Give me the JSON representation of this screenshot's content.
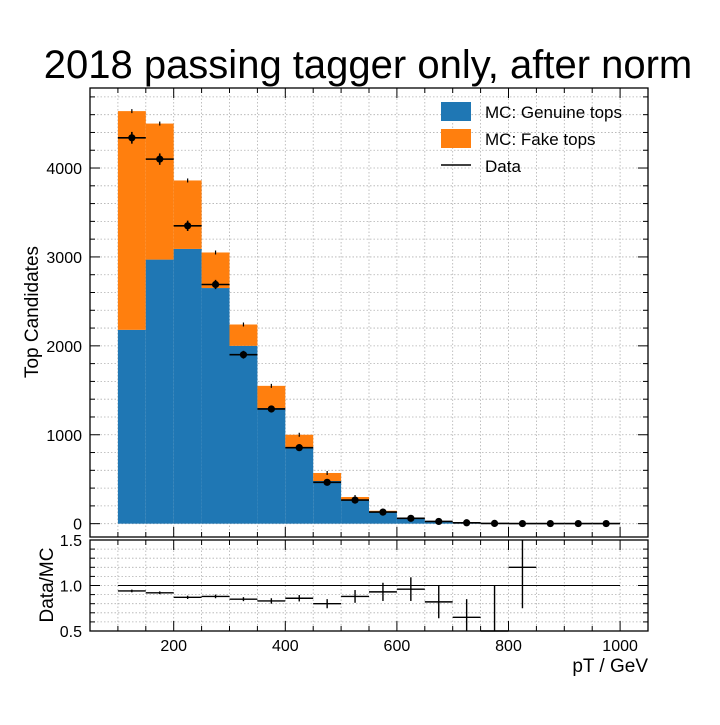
{
  "chart_data": [
    {
      "type": "bar",
      "stacked": true,
      "title": "2018 passing tagger only, after norm",
      "ylabel": "Top Candidates",
      "xlim": [
        50,
        1050
      ],
      "ylim": [
        -150,
        4900
      ],
      "bin_edges": [
        100,
        150,
        200,
        250,
        300,
        350,
        400,
        450,
        500,
        550,
        600,
        650,
        700,
        750,
        800,
        850,
        900,
        950,
        1000
      ],
      "x_ticks": [
        200,
        400,
        600,
        800,
        1000
      ],
      "y_ticks": [
        0,
        1000,
        2000,
        3000,
        4000
      ],
      "grid": true,
      "legend_position": "top-right",
      "series": [
        {
          "name": "MC: Genuine tops",
          "color": "#1f77b4",
          "kind": "hist",
          "values": [
            2180,
            2970,
            3090,
            2650,
            2000,
            1300,
            860,
            480,
            260,
            130,
            60,
            25,
            12,
            6,
            3,
            2,
            1,
            1
          ]
        },
        {
          "name": "MC: Fake tops",
          "color": "#ff7f0e",
          "kind": "hist",
          "values": [
            2460,
            1530,
            770,
            400,
            240,
            250,
            140,
            90,
            40,
            15,
            8,
            4,
            3,
            1,
            1,
            1,
            1,
            0
          ]
        },
        {
          "name": "Data",
          "color": "#000000",
          "kind": "points",
          "values": [
            4340,
            4100,
            3350,
            2690,
            1900,
            1290,
            855,
            465,
            265,
            130,
            60,
            25,
            10,
            3,
            1,
            1,
            1,
            1
          ],
          "errors": [
            66,
            64,
            58,
            52,
            44,
            36,
            29,
            22,
            16,
            11,
            8,
            5,
            3,
            2,
            1,
            1,
            1,
            1
          ]
        }
      ]
    },
    {
      "type": "scatter",
      "ylabel": "Data/MC",
      "xlabel": "pT / GeV",
      "xlim": [
        50,
        1050
      ],
      "ylim": [
        0.5,
        1.5
      ],
      "x_ticks": [
        200,
        400,
        600,
        800,
        1000
      ],
      "y_ticks": [
        0.5,
        1.0,
        1.5
      ],
      "y_tick_labels": [
        "0.5",
        "1.0",
        "1.5"
      ],
      "reference_line": 1.0,
      "grid": true,
      "x": [
        125,
        175,
        225,
        275,
        325,
        375,
        425,
        475,
        525,
        575,
        625,
        675,
        725,
        775,
        825
      ],
      "values": [
        0.94,
        0.92,
        0.87,
        0.88,
        0.85,
        0.83,
        0.86,
        0.8,
        0.88,
        0.93,
        0.96,
        0.82,
        0.65,
        0.5,
        1.2
      ],
      "errors": [
        0.015,
        0.015,
        0.018,
        0.02,
        0.022,
        0.03,
        0.035,
        0.05,
        0.07,
        0.1,
        0.13,
        0.18,
        0.2,
        0.5,
        0.45
      ]
    }
  ]
}
